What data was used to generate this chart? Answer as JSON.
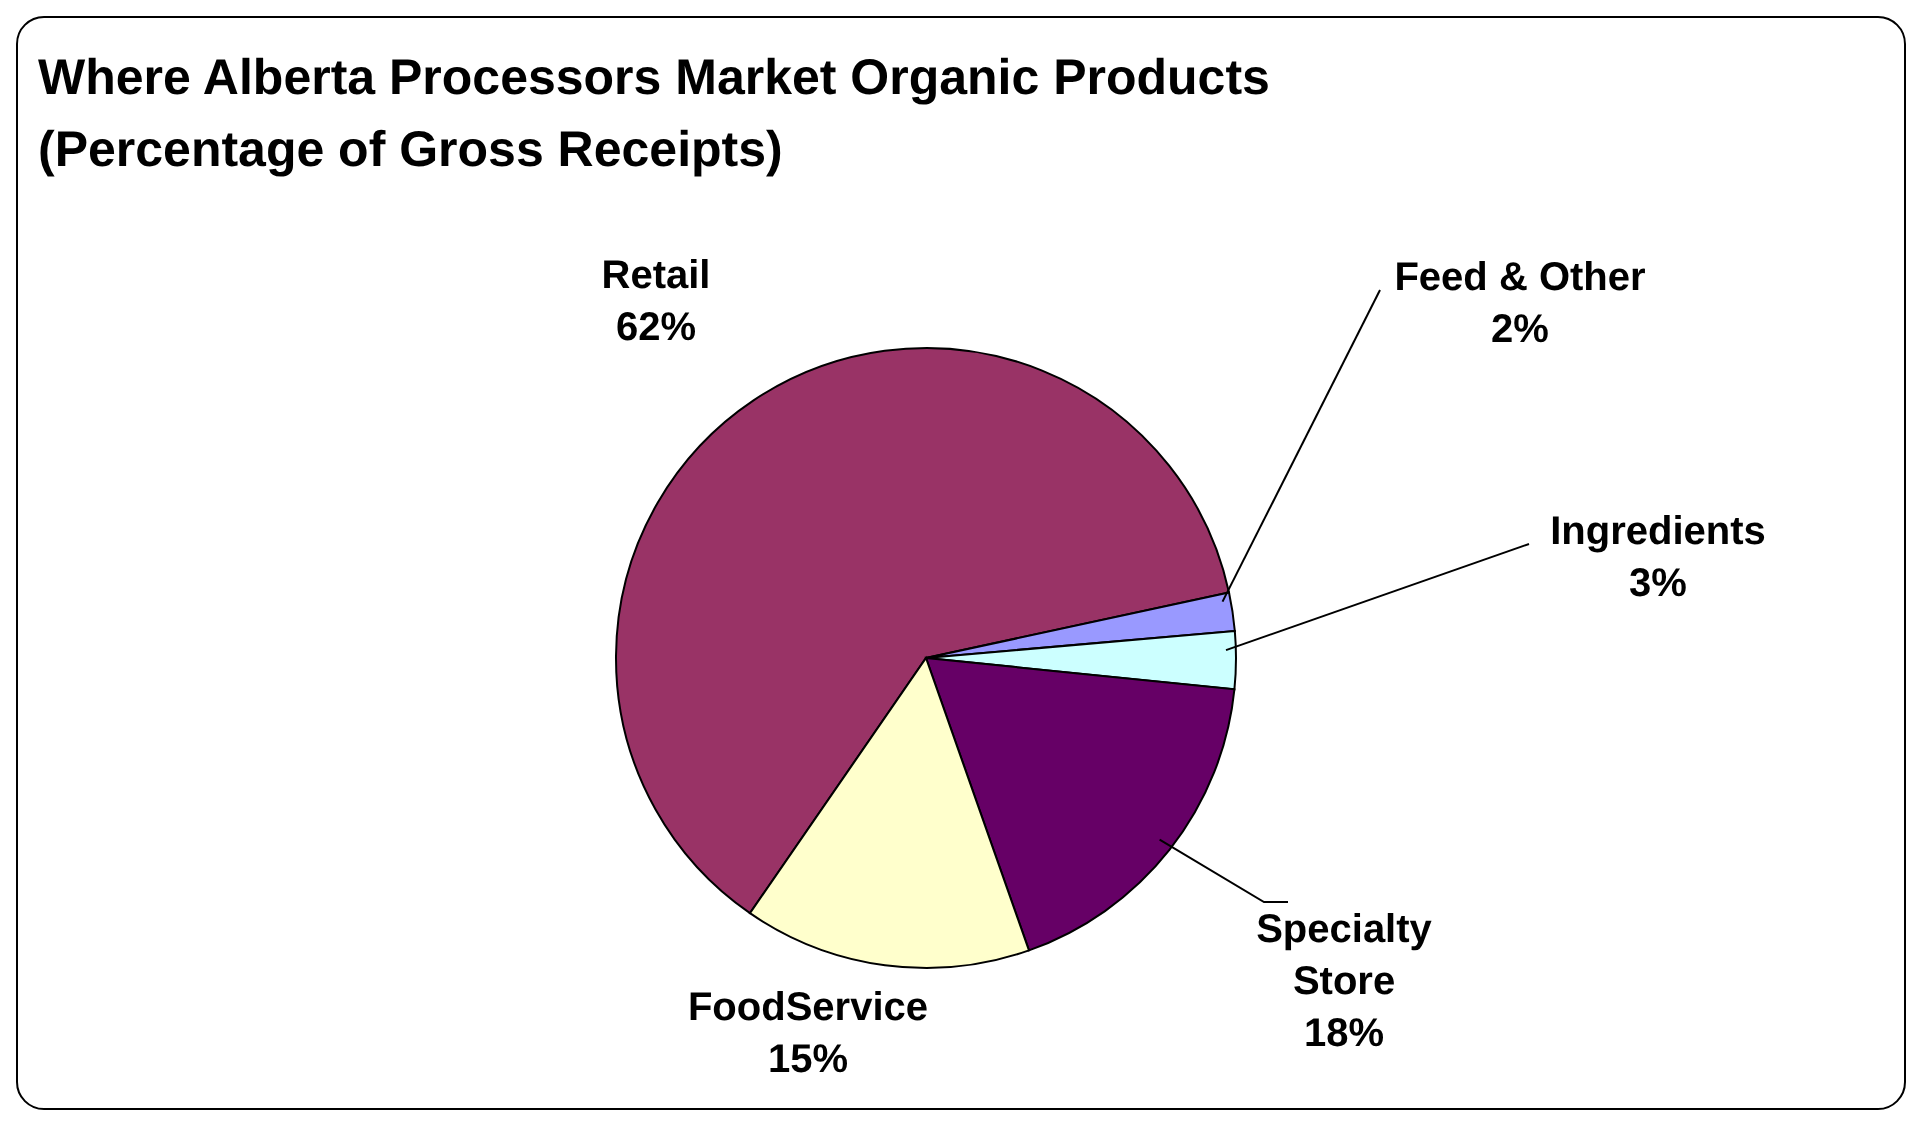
{
  "chart_data": {
    "type": "pie",
    "title": "Where Alberta Processors Market Organic Products (Percentage of Gross Receipts)",
    "categories": [
      "Retail",
      "Feed & Other",
      "Ingredients",
      "Specialty Store",
      "FoodService"
    ],
    "values": [
      62,
      2,
      3,
      18,
      15
    ],
    "value_labels": [
      "62%",
      "2%",
      "3%",
      "18%",
      "15%"
    ],
    "colors": [
      "#993366",
      "#9999ff",
      "#ccffff",
      "#660066",
      "#ffffcc"
    ],
    "legend": false
  }
}
